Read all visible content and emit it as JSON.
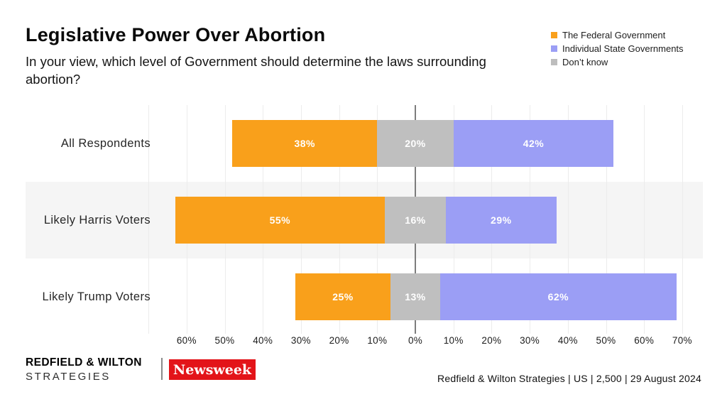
{
  "header": {
    "title": "Legislative Power Over Abortion",
    "subtitle": "In your view, which level of Government should determine the laws surrounding abortion?"
  },
  "legend": {
    "position": "top-right",
    "items": [
      {
        "label": "The Federal Government",
        "color": "#F9A01B"
      },
      {
        "label": "Individual State Governments",
        "color": "#9B9EF5"
      },
      {
        "label": "Don’t know",
        "color": "#BDBDBD"
      }
    ]
  },
  "chart_data": {
    "type": "bar",
    "subtype": "diverging-stacked-horizontal",
    "title": "Legislative Power Over Abortion",
    "categories": [
      "All Respondents",
      "Likely Harris Voters",
      "Likely Trump Voters"
    ],
    "series": [
      {
        "name": "The Federal Government",
        "side": "left",
        "color": "#F9A01B",
        "values": [
          38,
          55,
          25
        ]
      },
      {
        "name": "Don’t know",
        "side": "center",
        "color": "#BFBFBF",
        "values": [
          20,
          16,
          13
        ]
      },
      {
        "name": "Individual State Governments",
        "side": "right",
        "color": "#9B9EF5",
        "values": [
          42,
          29,
          62
        ]
      }
    ],
    "value_label_format": "{v}%",
    "axis": {
      "range_pct": [
        -70,
        70
      ],
      "grid_step_pct": 10,
      "grid": true,
      "tick_labels": [
        "60%",
        "50%",
        "40%",
        "30%",
        "20%",
        "10%",
        "0%",
        "10%",
        "20%",
        "30%",
        "40%",
        "50%",
        "60%",
        "70%"
      ],
      "unlabeled_first_gridline": true
    },
    "row_stripe_color": "#f5f5f5",
    "striped_rows": [
      1
    ]
  },
  "footer": {
    "brand_line1": "REDFIELD & WILTON",
    "brand_line2": "STRATEGIES",
    "newsweek_logo_text": "Newsweek",
    "newsweek_red": "#E31419",
    "source": "Redfield & Wilton Strategies | US | 2,500 | 29 August 2024"
  }
}
